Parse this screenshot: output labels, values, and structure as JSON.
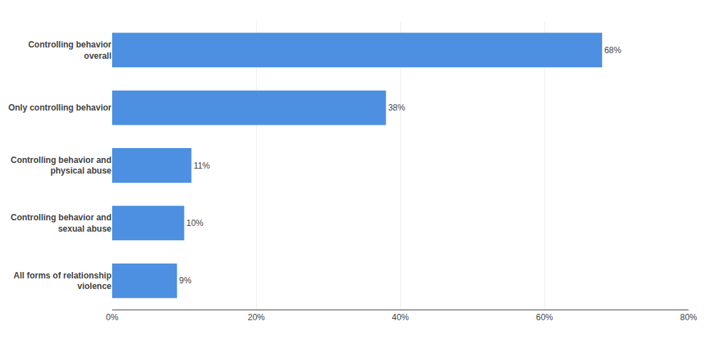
{
  "chart_data": {
    "type": "bar",
    "orientation": "horizontal",
    "categories": [
      "All forms of relationship\nviolence",
      "Controlling behavior and\nsexual abuse",
      "Controlling behavior and\nphysical abuse",
      "Only controlling behavior",
      "Controlling behavior\noverall"
    ],
    "values": [
      9,
      10,
      11,
      38,
      68
    ],
    "value_labels": [
      "9%",
      "10%",
      "11%",
      "38%",
      "68%"
    ],
    "data_labels": true,
    "color": "#4d8fe0",
    "xlim": [
      0,
      80
    ],
    "xticks": [
      {
        "value": 0,
        "label": "0%"
      },
      {
        "value": 20,
        "label": "20%"
      },
      {
        "value": 40,
        "label": "40%"
      },
      {
        "value": 60,
        "label": "60%"
      },
      {
        "value": 80,
        "label": "80%"
      }
    ],
    "grid": true
  }
}
